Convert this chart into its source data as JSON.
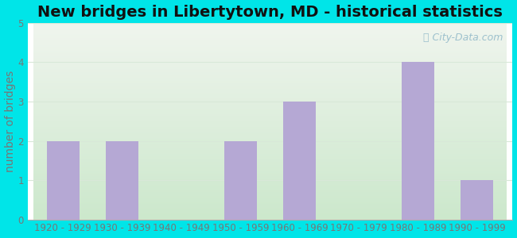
{
  "title": "New bridges in Libertytown, MD - historical statistics",
  "categories": [
    "1920 - 1929",
    "1930 - 1939",
    "1940 - 1949",
    "1950 - 1959",
    "1960 - 1969",
    "1970 - 1979",
    "1980 - 1989",
    "1990 - 1999"
  ],
  "values": [
    2,
    2,
    0,
    2,
    3,
    0,
    4,
    1
  ],
  "bar_color": "#b5a8d4",
  "ylabel": "number of bridges",
  "ylim": [
    0,
    5
  ],
  "yticks": [
    0,
    1,
    2,
    3,
    4,
    5
  ],
  "background_outer": "#00e5e8",
  "bg_top_color": "#f0f5ee",
  "bg_bottom_left_color": "#d6ecd6",
  "grid_color": "#d8e8d8",
  "title_fontsize": 14,
  "axis_label_fontsize": 10,
  "tick_fontsize": 8.5,
  "watermark_text": "City-Data.com",
  "watermark_color": "#90b8c8",
  "tick_color": "#777777",
  "title_color": "#111111"
}
